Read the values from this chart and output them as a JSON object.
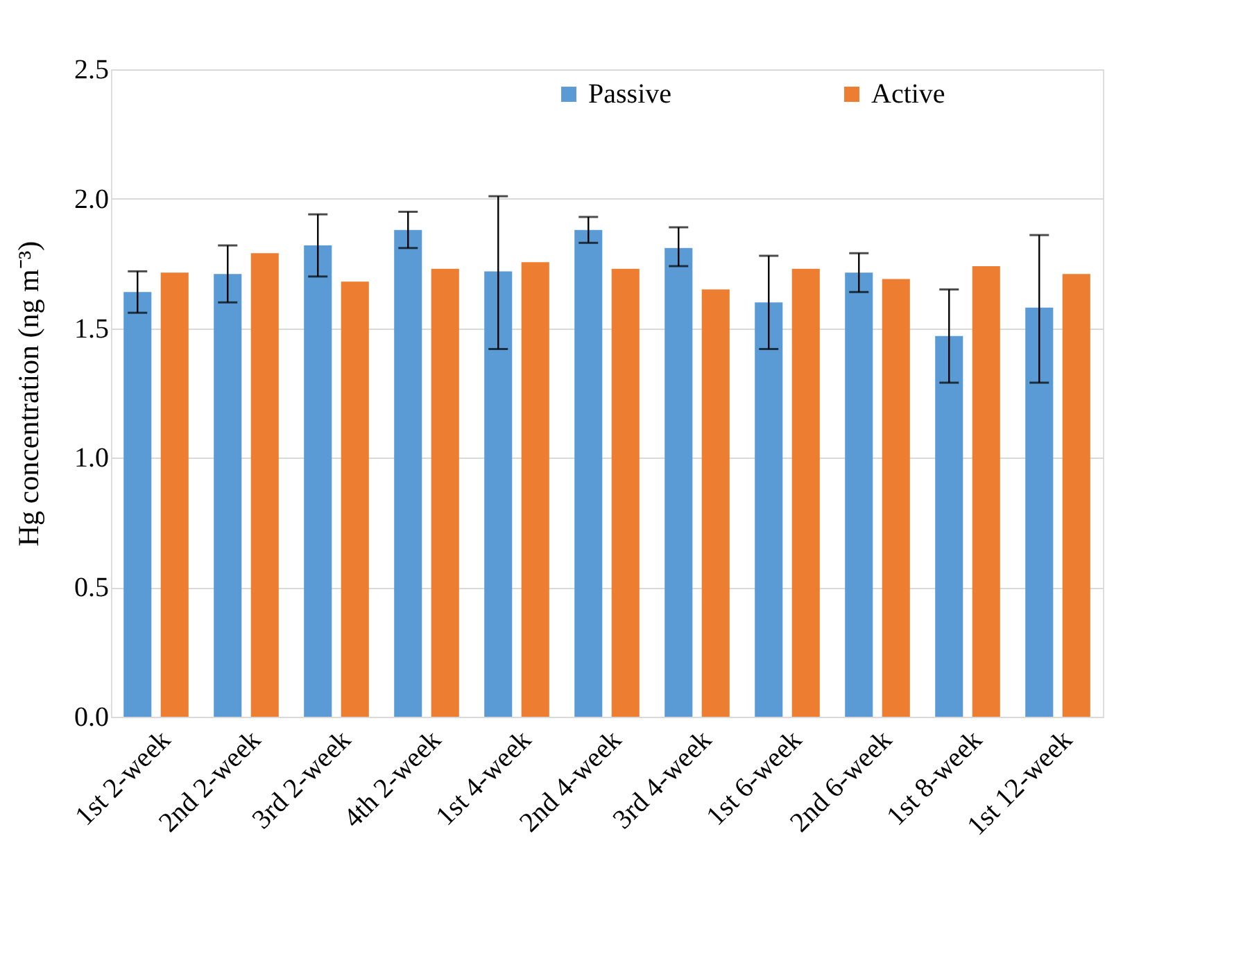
{
  "chart_data": {
    "type": "bar",
    "ylabel": "Hg concentration  (ng m⁻³)",
    "categories": [
      "1st 2-week",
      "2nd 2-week",
      "3rd 2-week",
      "4th 2-week",
      "1st 4-week",
      "2nd 4-week",
      "3rd 4-week",
      "1st 6-week",
      "2nd 6-week",
      "1st 8-week",
      "1st 12-week"
    ],
    "series": [
      {
        "name": "Passive",
        "color": "#5b9bd5",
        "values": [
          1.64,
          1.71,
          1.82,
          1.88,
          1.72,
          1.88,
          1.81,
          1.6,
          1.715,
          1.47,
          1.58
        ],
        "errors": [
          [
            1.56,
            1.72
          ],
          [
            1.6,
            1.82
          ],
          [
            1.7,
            1.94
          ],
          [
            1.81,
            1.95
          ],
          [
            1.42,
            2.01
          ],
          [
            1.83,
            1.93
          ],
          [
            1.74,
            1.89
          ],
          [
            1.42,
            1.78
          ],
          [
            1.64,
            1.79
          ],
          [
            1.29,
            1.65
          ],
          [
            1.29,
            1.86
          ]
        ]
      },
      {
        "name": "Active",
        "color": "#ed7d31",
        "values": [
          1.715,
          1.79,
          1.68,
          1.73,
          1.755,
          1.73,
          1.65,
          1.73,
          1.69,
          1.74,
          1.71
        ]
      }
    ],
    "ylim": [
      0,
      2.5
    ],
    "yticks": [
      {
        "value": 0,
        "label": "0.0"
      },
      {
        "value": 0.5,
        "label": "0.5"
      },
      {
        "value": 1,
        "label": "1.0"
      },
      {
        "value": 1.5,
        "label": "1.5"
      },
      {
        "value": 2,
        "label": "2.0"
      },
      {
        "value": 2.5,
        "label": "2.5"
      }
    ],
    "grid": "y",
    "legend": "top"
  }
}
